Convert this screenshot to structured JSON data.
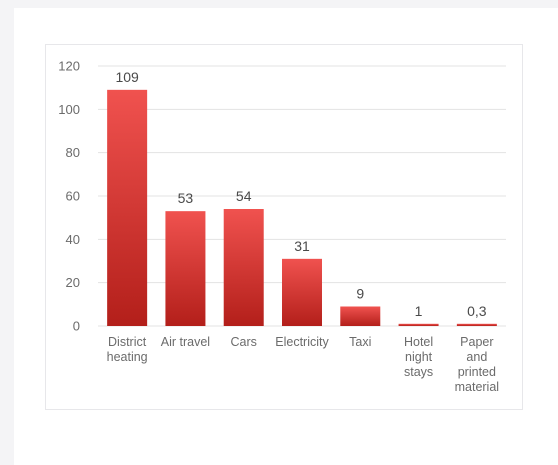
{
  "colors": {
    "bar_top": "#f0524f",
    "bar_bottom": "#b31f1a",
    "grid": "#e3e3e3",
    "text": "#6b6b6b"
  },
  "chart_data": {
    "type": "bar",
    "title": "",
    "xlabel": "",
    "ylabel": "",
    "ylim": [
      0,
      120
    ],
    "y_ticks": [
      0,
      20,
      40,
      60,
      80,
      100,
      120
    ],
    "grid": true,
    "categories": [
      [
        "District",
        "heating"
      ],
      [
        "Air travel"
      ],
      [
        "Cars"
      ],
      [
        "Electricity"
      ],
      [
        "Taxi"
      ],
      [
        "Hotel",
        "night",
        "stays"
      ],
      [
        "Paper",
        "and",
        "printed",
        "material"
      ]
    ],
    "values": [
      109,
      53,
      54,
      31,
      9,
      1,
      0.3
    ],
    "value_labels": [
      "109",
      "53",
      "54",
      "31",
      "9",
      "1",
      "0,3"
    ]
  }
}
